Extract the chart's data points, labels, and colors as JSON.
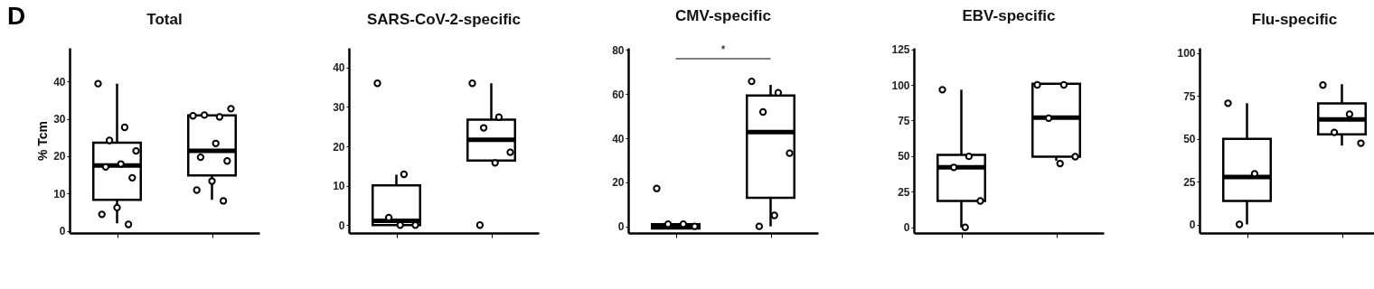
{
  "chart_data": [
    {
      "type": "box",
      "title": "Total",
      "ylabel": "% Tcm",
      "categories": [
        null,
        null
      ],
      "ylim": [
        -0.6,
        49
      ],
      "yticks": [
        0,
        10,
        20,
        30,
        40
      ],
      "tick_labels": "y",
      "marker": "circle",
      "annotations": [
        "D"
      ],
      "series": [
        {
          "color": "#000000",
          "boxes": [
            {
              "low": 2,
              "q1": 8.3,
              "median": 17.5,
              "q3": 23.6,
              "high": 39.4,
              "outliers": [
                39.4,
                27.7,
                24.2,
                21.4,
                17.9,
                17.1,
                14.2,
                6.2,
                4.4,
                1.7
              ]
            },
            {
              "low": 8.3,
              "q1": 14.8,
              "median": 21.4,
              "q3": 30.9,
              "high": 31,
              "outliers": [
                30.8,
                30.5,
                31,
                32.7,
                23.4,
                19.7,
                18.7,
                13.3,
                10.9,
                8
              ]
            }
          ]
        }
      ]
    },
    {
      "type": "box",
      "title": "SARS-CoV-2-specific",
      "categories": [
        null,
        null
      ],
      "ylim": [
        -2,
        45
      ],
      "yticks": [
        0,
        10,
        20,
        30,
        40
      ],
      "tick_labels": "y",
      "marker": "circle",
      "series": [
        {
          "color": "#000000",
          "boxes": [
            {
              "low": 0,
              "q1": 0,
              "median": 1.1,
              "q3": 10.1,
              "high": 12.8,
              "outliers": [
                36,
                12.9,
                1.9,
                0,
                0
              ]
            },
            {
              "low": 16.4,
              "q1": 16.4,
              "median": 21.7,
              "q3": 26.8,
              "high": 36,
              "outliers": [
                36,
                27.4,
                24.7,
                18.5,
                15.8,
                0
              ]
            }
          ]
        }
      ]
    },
    {
      "type": "box",
      "title": "CMV-specific",
      "categories": [
        null,
        null
      ],
      "ylim": [
        -3,
        81
      ],
      "yticks": [
        0,
        20,
        40,
        60,
        80
      ],
      "tick_labels": "y",
      "marker": "circle",
      "annotations": [
        "*"
      ],
      "series": [
        {
          "color": "#000000",
          "boxes": [
            {
              "low": -1,
              "q1": -1,
              "median": 0,
              "q3": 1,
              "high": 1,
              "outliers": [
                17.2,
                1,
                1,
                0
              ]
            },
            {
              "low": 0,
              "q1": 13,
              "median": 42.8,
              "q3": 59.4,
              "high": 64.2,
              "outliers": [
                65.8,
                60.6,
                51.9,
                33.2,
                5,
                0
              ]
            }
          ]
        }
      ]
    },
    {
      "type": "box",
      "title": "EBV-specific",
      "categories": [
        null,
        null
      ],
      "ylim": [
        -4,
        126
      ],
      "yticks": [
        0,
        25,
        50,
        75,
        100,
        125
      ],
      "tick_labels": "y",
      "marker": "circle",
      "series": [
        {
          "color": "#000000",
          "boxes": [
            {
              "low": 0,
              "q1": 18.5,
              "median": 42.1,
              "q3": 50.8,
              "high": 96.6,
              "outliers": [
                96.6,
                49.8,
                42.1,
                18.5,
                0
              ]
            },
            {
              "low": 46.8,
              "q1": 49.6,
              "median": 77,
              "q3": 100.8,
              "high": 100.8,
              "outliers": [
                100,
                100,
                76.6,
                49.6,
                44.8
              ]
            }
          ]
        }
      ]
    },
    {
      "type": "box",
      "title": "Flu-specific",
      "categories": [
        null,
        null
      ],
      "ylim": [
        -5,
        103
      ],
      "yticks": [
        0,
        25,
        50,
        75,
        100
      ],
      "tick_labels": "y",
      "marker": "circle",
      "series": [
        {
          "color": "#000000",
          "boxes": [
            {
              "low": 0,
              "q1": 13.7,
              "median": 27.6,
              "q3": 49.9,
              "high": 70.7,
              "outliers": [
                70.7,
                29.6,
                0
              ]
            },
            {
              "low": 46,
              "q1": 52.6,
              "median": 61.2,
              "q3": 70.6,
              "high": 81.8,
              "outliers": [
                81.3,
                64.3,
                53.7,
                47.4
              ]
            }
          ]
        }
      ]
    }
  ]
}
